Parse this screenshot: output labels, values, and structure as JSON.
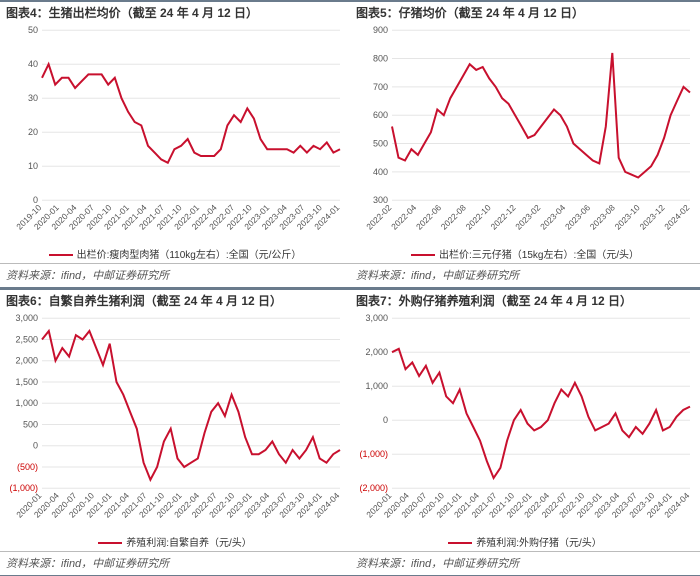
{
  "panels": [
    {
      "title": "图表4：生猪出栏均价（截至 24 年 4 月 12 日）",
      "legend": "出栏价:瘦肉型肉猪（110kg左右）:全国（元/公斤）",
      "source": "资料来源：ifind，中邮证券研究所",
      "chart": {
        "type": "line",
        "series_color": "#c8102e",
        "line_width": 2,
        "background_color": "#ffffff",
        "grid_color": "#e5e5e5",
        "ylim": [
          0,
          50
        ],
        "ytick_step": 10,
        "yticks": [
          0,
          10,
          20,
          30,
          40,
          50
        ],
        "xlabels": [
          "2019-10",
          "2020-01",
          "2020-04",
          "2020-07",
          "2020-10",
          "2021-01",
          "2021-04",
          "2021-07",
          "2021-10",
          "2022-01",
          "2022-04",
          "2022-07",
          "2022-10",
          "2023-01",
          "2023-04",
          "2023-07",
          "2023-10",
          "2024-01"
        ],
        "xlabel_rotation": -45,
        "values": [
          36,
          40,
          34,
          36,
          36,
          33,
          35,
          37,
          37,
          37,
          34,
          36,
          30,
          26,
          23,
          22,
          16,
          14,
          12,
          11,
          15,
          16,
          18,
          14,
          13,
          13,
          13,
          15,
          22,
          25,
          23,
          27,
          24,
          18,
          15,
          15,
          15,
          15,
          14,
          16,
          14,
          16,
          15,
          17,
          14,
          15
        ]
      }
    },
    {
      "title": "图表5：仔猪均价（截至 24 年 4 月 12 日）",
      "legend": "出栏价:三元仔猪（15kg左右）:全国（元/头）",
      "source": "资料来源：ifind，中邮证券研究所",
      "chart": {
        "type": "line",
        "series_color": "#c8102e",
        "line_width": 2,
        "background_color": "#ffffff",
        "grid_color": "#e5e5e5",
        "ylim": [
          300,
          900
        ],
        "ytick_step": 100,
        "yticks": [
          300,
          400,
          500,
          600,
          700,
          800,
          900
        ],
        "xlabels": [
          "2022-02",
          "2022-04",
          "2022-06",
          "2022-08",
          "2022-10",
          "2022-12",
          "2023-02",
          "2023-04",
          "2023-06",
          "2023-08",
          "2023-10",
          "2023-12",
          "2024-02"
        ],
        "xlabel_rotation": -45,
        "values": [
          560,
          450,
          440,
          480,
          460,
          500,
          540,
          620,
          600,
          660,
          700,
          740,
          780,
          760,
          770,
          730,
          700,
          660,
          640,
          600,
          560,
          520,
          530,
          560,
          590,
          620,
          600,
          560,
          500,
          480,
          460,
          440,
          430,
          560,
          820,
          450,
          400,
          390,
          380,
          400,
          420,
          460,
          520,
          600,
          650,
          700,
          680
        ]
      }
    },
    {
      "title": "图表6：自繁自养生猪利润（截至 24 年 4 月 12 日）",
      "legend": "养殖利润:自繁自养（元/头）",
      "source": "资料来源：ifind，中邮证券研究所",
      "chart": {
        "type": "line",
        "series_color": "#c8102e",
        "line_width": 2,
        "background_color": "#ffffff",
        "grid_color": "#e5e5e5",
        "ylim": [
          -1000,
          3000
        ],
        "ytick_step": 500,
        "yticks": [
          -1000,
          -500,
          0,
          500,
          1000,
          1500,
          2000,
          2500,
          3000
        ],
        "yticks_fmt": [
          "(1,000)",
          "(500)",
          "0",
          "500",
          "1,000",
          "1,500",
          "2,000",
          "2,500",
          "3,000"
        ],
        "xlabels": [
          "2020-01",
          "2020-04",
          "2020-07",
          "2020-10",
          "2021-01",
          "2021-04",
          "2021-07",
          "2021-10",
          "2022-01",
          "2022-04",
          "2022-07",
          "2022-10",
          "2023-01",
          "2023-04",
          "2023-07",
          "2023-10",
          "2024-01",
          "2024-04"
        ],
        "xlabel_rotation": -45,
        "values": [
          2500,
          2700,
          2000,
          2300,
          2100,
          2600,
          2500,
          2700,
          2300,
          1900,
          2400,
          1500,
          1200,
          800,
          400,
          -400,
          -800,
          -500,
          100,
          400,
          -300,
          -500,
          -400,
          -300,
          300,
          800,
          1000,
          700,
          1200,
          800,
          200,
          -200,
          -200,
          -100,
          100,
          -200,
          -400,
          -100,
          -300,
          -100,
          200,
          -300,
          -400,
          -200,
          -100
        ]
      }
    },
    {
      "title": "图表7：外购仔猪养殖利润（截至 24 年 4 月 12 日）",
      "legend": "养殖利润:外购仔猪（元/头）",
      "source": "资料来源：ifind，中邮证券研究所",
      "chart": {
        "type": "line",
        "series_color": "#c8102e",
        "line_width": 2,
        "background_color": "#ffffff",
        "grid_color": "#e5e5e5",
        "ylim": [
          -2000,
          3000
        ],
        "ytick_step": 1000,
        "yticks": [
          -2000,
          -1000,
          0,
          1000,
          2000,
          3000
        ],
        "yticks_fmt": [
          "(2,000)",
          "(1,000)",
          "0",
          "1,000",
          "2,000",
          "3,000"
        ],
        "xlabels": [
          "2020-01",
          "2020-04",
          "2020-07",
          "2020-10",
          "2021-01",
          "2021-04",
          "2021-07",
          "2021-10",
          "2022-01",
          "2022-04",
          "2022-07",
          "2022-10",
          "2023-01",
          "2023-04",
          "2023-07",
          "2023-10",
          "2024-01",
          "2024-04"
        ],
        "xlabel_rotation": -45,
        "values": [
          2000,
          2100,
          1500,
          1700,
          1300,
          1600,
          1100,
          1400,
          700,
          500,
          900,
          200,
          -200,
          -600,
          -1200,
          -1700,
          -1400,
          -600,
          0,
          300,
          -100,
          -300,
          -200,
          0,
          500,
          900,
          700,
          1100,
          700,
          100,
          -300,
          -200,
          -100,
          200,
          -300,
          -500,
          -200,
          -400,
          -100,
          300,
          -300,
          -200,
          100,
          300,
          400
        ]
      }
    }
  ]
}
